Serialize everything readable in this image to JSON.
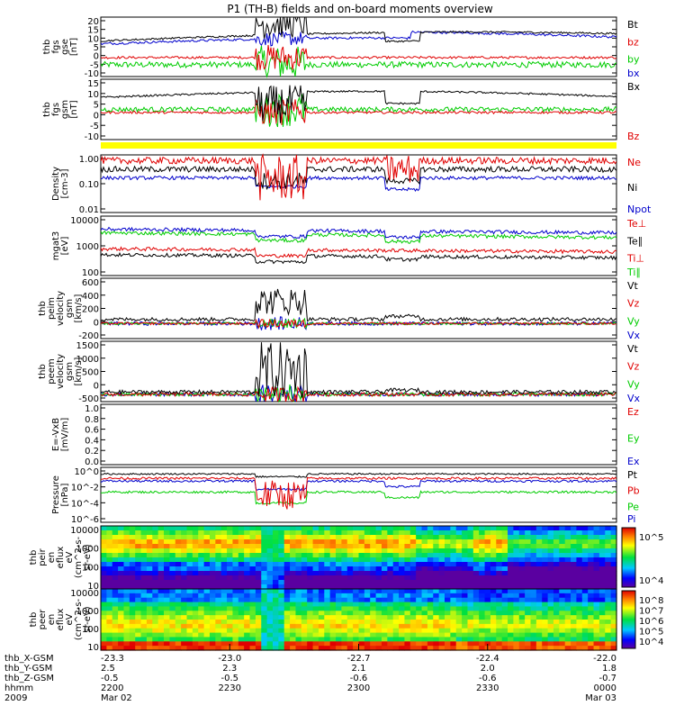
{
  "title": "P1 (TH-B) fields and on-board moments overview",
  "colors": {
    "black": "#000000",
    "red": "#e00000",
    "green": "#00cc00",
    "blue": "#0000cc",
    "yellow": "#ffff00"
  },
  "chart_data": [
    {
      "type": "line",
      "ylabel": [
        "thb",
        "fgs",
        "gse",
        "[nT]"
      ],
      "ylim": [
        -15,
        20
      ],
      "ticks": [
        "20",
        "15",
        "10",
        "5",
        "0",
        "-5",
        "-10"
      ],
      "legend": [
        {
          "name": "Bt",
          "color": "#000000"
        },
        {
          "name": "bz",
          "color": "#e00000"
        },
        {
          "name": "by",
          "color": "#00cc00"
        },
        {
          "name": "bx",
          "color": "#0000cc"
        }
      ]
    },
    {
      "type": "line",
      "ylabel": [
        "thb",
        "fgs",
        "gsm",
        "[nT]"
      ],
      "ylim": [
        -15,
        15
      ],
      "ticks": [
        "15",
        "10",
        "5",
        "0",
        "-5",
        "-10"
      ],
      "legend": [
        {
          "name": "Bx",
          "color": "#000000"
        },
        {
          "name": "Bz",
          "color": "#e00000"
        }
      ]
    },
    {
      "type": "line",
      "ylabel": [
        "Density",
        "[cm-3]"
      ],
      "scale": "log",
      "ylim": [
        0.01,
        1.5
      ],
      "ticks": [
        "1.00",
        "0.10",
        "0.01"
      ],
      "legend": [
        {
          "name": "Ne",
          "color": "#e00000"
        },
        {
          "name": "Ni",
          "color": "#000000"
        },
        {
          "name": "Npot",
          "color": "#0000cc"
        }
      ]
    },
    {
      "type": "line",
      "ylabel": [
        "mgat3",
        "[eV]"
      ],
      "scale": "log",
      "ticks": [
        "10000",
        "1000",
        "100"
      ],
      "legend": [
        {
          "name": "Te⊥",
          "color": "#e00000"
        },
        {
          "name": "Te∥",
          "color": "#000000"
        },
        {
          "name": "Ti⊥",
          "color": "#e00000"
        },
        {
          "name": "Ti∥",
          "color": "#00cc00"
        }
      ]
    },
    {
      "type": "line",
      "ylabel": [
        "thb",
        "peim",
        "velocity",
        "gsm",
        "[km/s]"
      ],
      "ylim": [
        -200,
        600
      ],
      "ticks": [
        "600",
        "400",
        "200",
        "0",
        "-200"
      ],
      "legend": [
        {
          "name": "Vt",
          "color": "#000000"
        },
        {
          "name": "Vz",
          "color": "#e00000"
        },
        {
          "name": "Vy",
          "color": "#00cc00"
        },
        {
          "name": "Vx",
          "color": "#0000cc"
        }
      ]
    },
    {
      "type": "line",
      "ylabel": [
        "thb",
        "peem",
        "velocity",
        "gsm",
        "[km/s]"
      ],
      "ylim": [
        -200,
        1500
      ],
      "ticks": [
        "1500",
        "1000",
        "500",
        "0",
        "-500"
      ],
      "legend": [
        {
          "name": "Vt",
          "color": "#000000"
        },
        {
          "name": "Vz",
          "color": "#e00000"
        },
        {
          "name": "Vy",
          "color": "#00cc00"
        },
        {
          "name": "Vx",
          "color": "#0000cc"
        }
      ]
    },
    {
      "type": "line",
      "ylabel": [
        "E=-VxB",
        "[mV/m]"
      ],
      "ylim": [
        0,
        1
      ],
      "ticks": [
        "1.0",
        "0.8",
        "0.6",
        "0.4",
        "0.2",
        "0.0"
      ],
      "legend": [
        {
          "name": "Ez",
          "color": "#e00000"
        },
        {
          "name": "Ey",
          "color": "#00cc00"
        },
        {
          "name": "Ex",
          "color": "#0000cc"
        }
      ]
    },
    {
      "type": "line",
      "ylabel": [
        "Pressure",
        "[nPa]"
      ],
      "scale": "log",
      "ticks": [
        "10^0",
        "10^-2",
        "10^-4",
        "10^-6"
      ],
      "legend": [
        {
          "name": "Pt",
          "color": "#000000"
        },
        {
          "name": "Pb",
          "color": "#e00000"
        },
        {
          "name": "Pe",
          "color": "#00cc00"
        },
        {
          "name": "Pi",
          "color": "#0000cc"
        }
      ]
    },
    {
      "type": "heatmap",
      "ylabel": [
        "thb",
        "peir",
        "en",
        "eflux",
        "eV",
        "(cm^2-s-",
        "sr-eV)"
      ],
      "scale": "log",
      "ticks": [
        "10000",
        "1000",
        "100",
        "10"
      ],
      "colorbar_ticks": [
        "10^5",
        "10^4"
      ]
    },
    {
      "type": "heatmap",
      "ylabel": [
        "thb",
        "peer",
        "en",
        "eflux",
        "eV",
        "(cm^2-s-",
        "sr-eV)"
      ],
      "scale": "log",
      "ticks": [
        "10000",
        "1000",
        "100",
        "10"
      ],
      "colorbar_ticks": [
        "10^8",
        "10^7",
        "10^6",
        "10^5",
        "10^4"
      ]
    }
  ],
  "time_axis": {
    "rows": [
      {
        "label": "thb_X-GSM",
        "values": [
          "-23.3",
          "-23.0",
          "-22.7",
          "-22.4",
          "-22.0"
        ]
      },
      {
        "label": "thb_Y-GSM",
        "values": [
          "2.5",
          "2.3",
          "2.1",
          "2.0",
          "1.8"
        ]
      },
      {
        "label": "thb_Z-GSM",
        "values": [
          "-0.5",
          "-0.5",
          "-0.6",
          "-0.6",
          "-0.7"
        ]
      },
      {
        "label": "hhmm",
        "values": [
          "2200",
          "2230",
          "2300",
          "2330",
          "0000"
        ]
      },
      {
        "label": "2009",
        "values": [
          "Mar 02",
          "",
          "",
          "",
          "Mar 03"
        ]
      }
    ]
  }
}
